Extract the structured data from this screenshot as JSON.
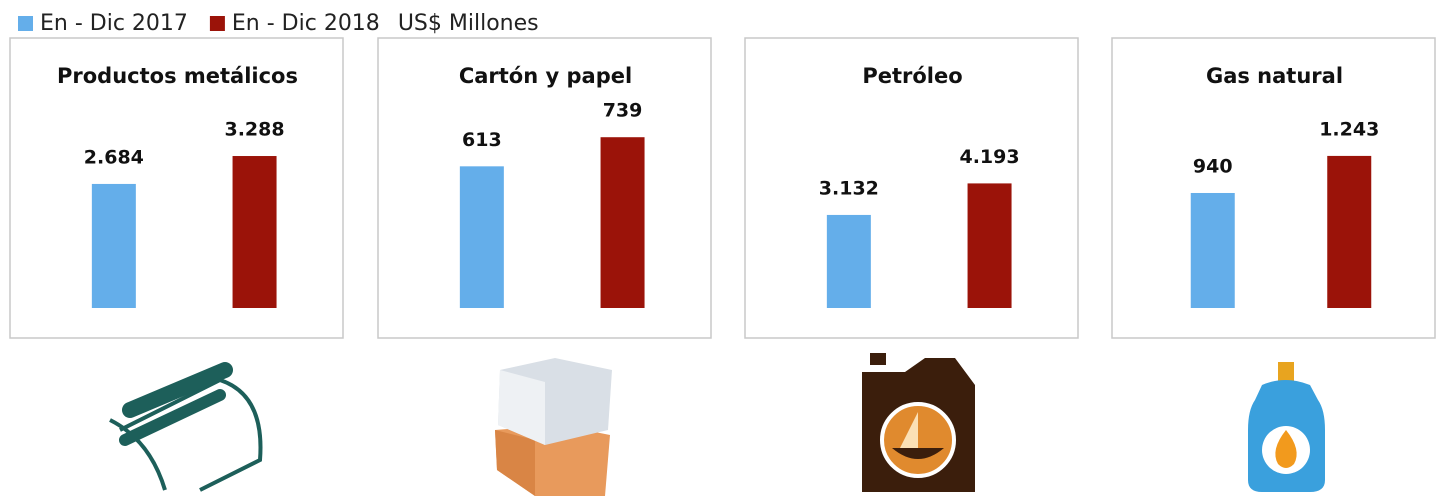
{
  "legend": [
    {
      "name": "En - Dic 2017",
      "color": "#64aeea"
    },
    {
      "name": "En - Dic 2018",
      "color": "#9b1309"
    }
  ],
  "unit": "US$ Millones",
  "chart_data": [
    {
      "type": "bar",
      "title": "Productos metálicos",
      "ylim": [
        0,
        4500
      ],
      "series": [
        {
          "values": [
            2684
          ],
          "value_labels": [
            "2.684"
          ]
        },
        {
          "values": [
            3288
          ],
          "value_labels": [
            "3.288"
          ]
        }
      ]
    },
    {
      "type": "bar",
      "title": "Cartón y papel",
      "ylim": [
        0,
        900
      ],
      "series": [
        {
          "values": [
            613
          ]
        },
        {
          "values": [
            739
          ]
        }
      ]
    },
    {
      "type": "bar",
      "title": "Petróleo",
      "ylim": [
        0,
        7000
      ],
      "series": [
        {
          "values": [
            3132
          ],
          "value_labels": [
            "3.132"
          ]
        },
        {
          "values": [
            4193
          ],
          "value_labels": [
            "4.193"
          ]
        }
      ]
    },
    {
      "type": "bar",
      "title": "Gas natural",
      "ylim": [
        0,
        1700
      ],
      "series": [
        {
          "values": [
            940
          ]
        },
        {
          "values": [
            1243
          ],
          "value_labels": [
            "1.243"
          ]
        }
      ]
    }
  ]
}
